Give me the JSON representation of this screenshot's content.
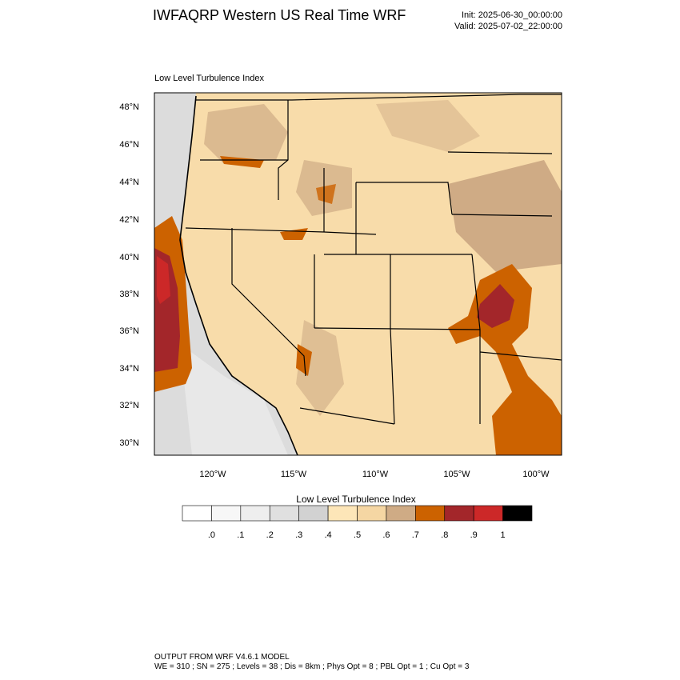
{
  "header": {
    "title": "IWFAQRP Western US Real Time WRF",
    "init": "Init: 2025-06-30_00:00:00",
    "valid": "Valid: 2025-07-02_22:00:00"
  },
  "map": {
    "title": "Low Level Turbulence Index",
    "lat_ticks": [
      "48°N",
      "46°N",
      "44°N",
      "42°N",
      "40°N",
      "38°N",
      "36°N",
      "34°N",
      "32°N",
      "30°N"
    ],
    "lon_ticks": [
      "120°W",
      "115°W",
      "110°W",
      "105°W",
      "100°W"
    ],
    "colors": {
      "low_gray": "#dcdcdc",
      "light_tan": "#fbe3b4",
      "tan": "#f2d4a1",
      "brown_tan": "#cfab85",
      "orange": "#cc6200",
      "dark_red": "#a3262a",
      "red": "#cc2828"
    }
  },
  "colorbar": {
    "title": "Low Level Turbulence Index",
    "labels": [
      ".0",
      ".1",
      ".2",
      ".3",
      ".4",
      ".5",
      ".6",
      ".7",
      ".8",
      ".9",
      "1"
    ],
    "colors": [
      "#ffffff",
      "#f7f7f7",
      "#eeeeee",
      "#e0e0e0",
      "#d2d2d2",
      "#fde6b8",
      "#f5d6a3",
      "#cfab85",
      "#cc6200",
      "#a3262a",
      "#cc2828",
      "#000000"
    ]
  },
  "footer": {
    "line1": "OUTPUT FROM WRF V4.6.1 MODEL",
    "line2": "WE = 310 ; SN = 275 ; Levels = 38 ; Dis = 8km ; Phys Opt = 8 ; PBL Opt = 1 ; Cu Opt = 3"
  }
}
